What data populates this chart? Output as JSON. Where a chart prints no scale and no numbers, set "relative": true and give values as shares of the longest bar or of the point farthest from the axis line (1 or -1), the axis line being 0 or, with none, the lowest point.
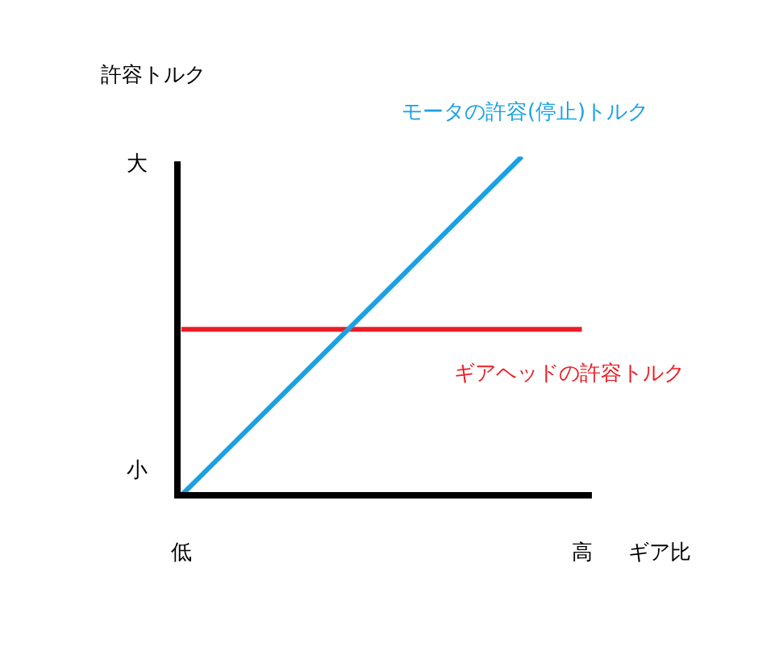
{
  "chart_data": {
    "type": "line",
    "relative": true,
    "ylabel": "許容トルク",
    "xlabel": "ギア比",
    "categories": [
      "低",
      null,
      null,
      null,
      null,
      null,
      null,
      null,
      null,
      null,
      null,
      null,
      null,
      null,
      null,
      null,
      null,
      null,
      null,
      null,
      "高"
    ],
    "legend": false,
    "marker": "none",
    "annotations": [
      "大",
      "小"
    ],
    "series": [
      {
        "name": "モータの許容(停止)トルク",
        "color": "#1ba1e2",
        "values": [
          0,
          null,
          null,
          null,
          null,
          null,
          null,
          null,
          null,
          null,
          null,
          null,
          null,
          null,
          null,
          null,
          null,
          1,
          null,
          null,
          null
        ]
      },
      {
        "name": "ギアヘッドの許容トルク",
        "color": "#ed1c24",
        "values": [
          0.49,
          0.49,
          0.49,
          0.49,
          0.49,
          0.49,
          0.49,
          0.49,
          0.49,
          0.49,
          0.49,
          0.49,
          0.49,
          0.49,
          0.49,
          0.49,
          0.49,
          0.49,
          0.49,
          0.49,
          0.49
        ]
      }
    ]
  }
}
